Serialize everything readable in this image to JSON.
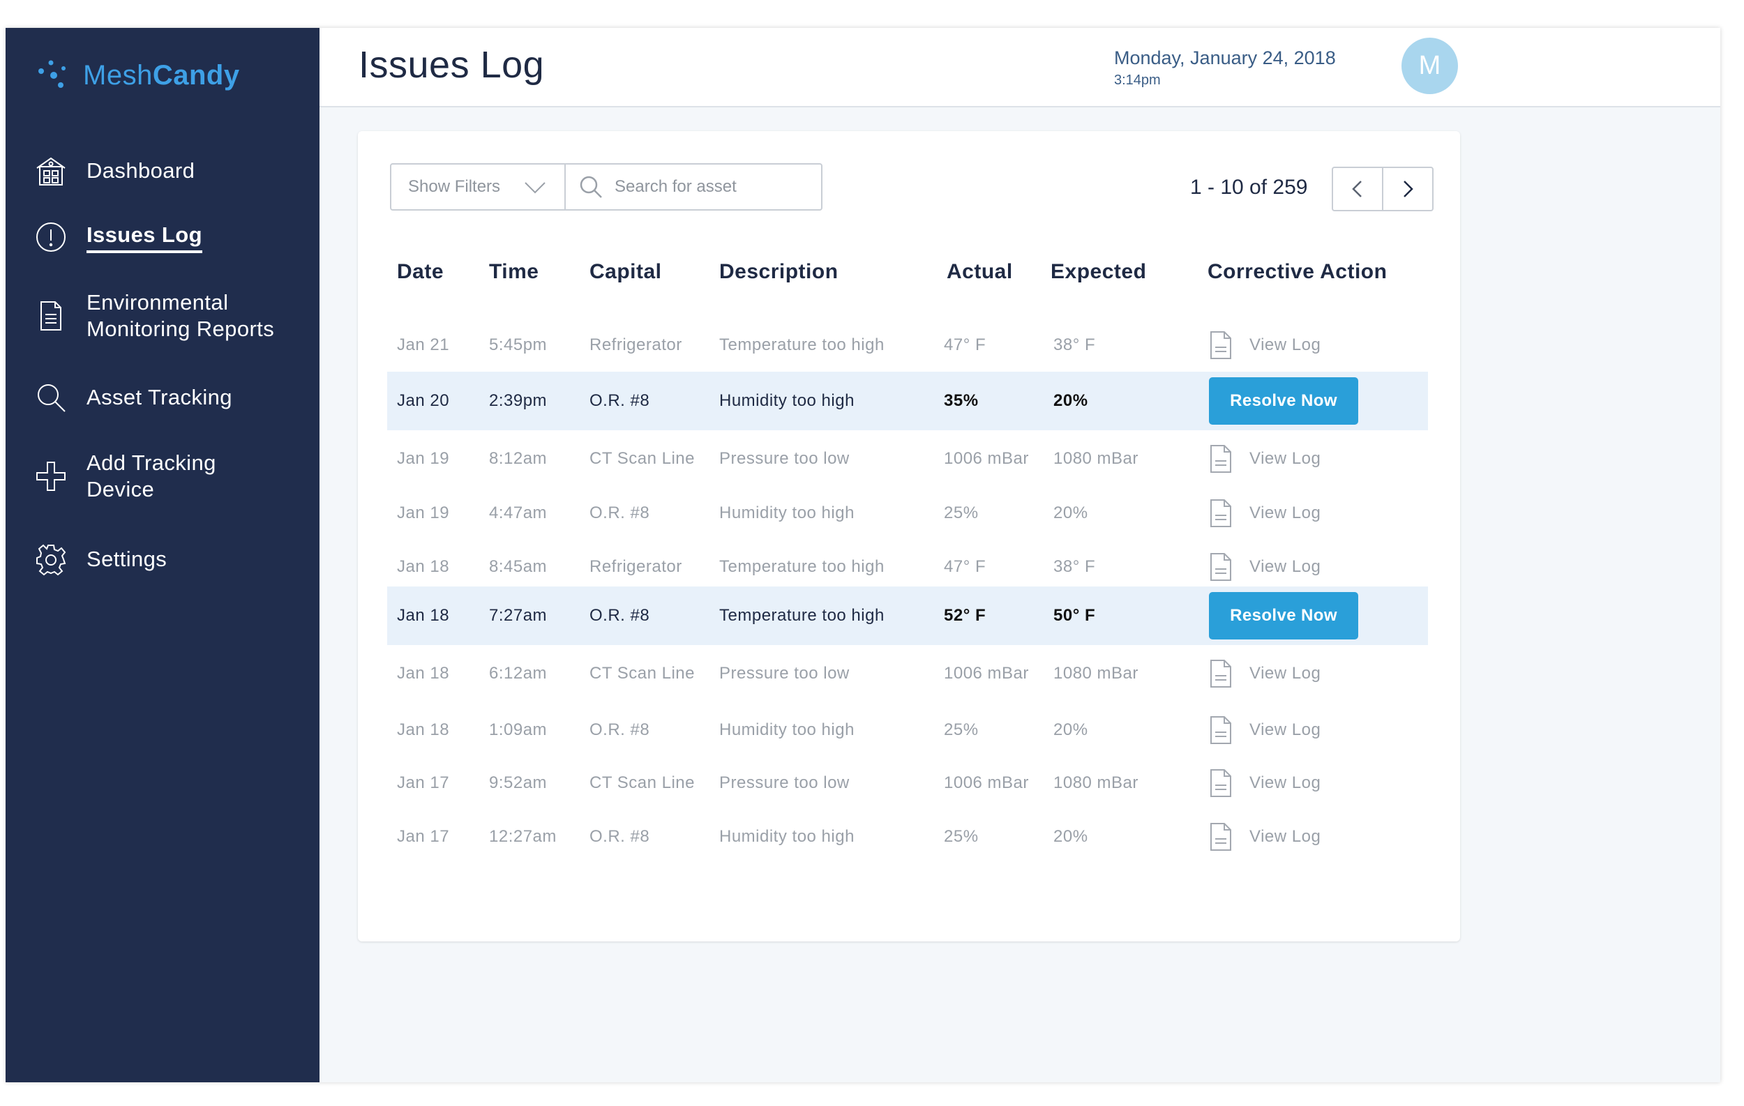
{
  "brand": {
    "name_part1": "Mesh",
    "name_part2": "Candy",
    "accent": "#3ea0e6"
  },
  "sidebar": {
    "background": "#202d4d",
    "items": [
      {
        "label": "Dashboard",
        "icon": "dashboard-building-icon",
        "active": false
      },
      {
        "label": "Issues Log",
        "icon": "alert-circle-icon",
        "active": true
      },
      {
        "label": "Environmental",
        "label2": "Monitoring Reports",
        "icon": "document-icon",
        "active": false
      },
      {
        "label": "Asset Tracking",
        "icon": "search-icon",
        "active": false
      },
      {
        "label": "Add Tracking",
        "label2": "Device",
        "icon": "plus-outline-icon",
        "active": false
      },
      {
        "label": "Settings",
        "icon": "gear-icon",
        "active": false
      }
    ]
  },
  "header": {
    "title": "Issues Log",
    "date": "Monday, January 24, 2018",
    "time": "3:14pm",
    "avatar_initial": "M"
  },
  "toolbar": {
    "filters_label": "Show Filters",
    "search_placeholder": "Search for asset",
    "pagination": "1 - 10 of 259"
  },
  "table": {
    "columns": [
      "Date",
      "Time",
      "Capital",
      "Description",
      "Actual",
      "Expected",
      "Corrective Action"
    ],
    "view_log_label": "View Log",
    "resolve_label": "Resolve Now",
    "rows": [
      {
        "date": "Jan 21",
        "time": "5:45pm",
        "capital": "Refrigerator",
        "description": "Temperature too high",
        "actual": "47° F",
        "expected": "38° F",
        "action": "view"
      },
      {
        "date": "Jan 20",
        "time": "2:39pm",
        "capital": "O.R. #8",
        "description": "Humidity too high",
        "actual": "35%",
        "expected": "20%",
        "action": "resolve"
      },
      {
        "date": "Jan 19",
        "time": "8:12am",
        "capital": "CT Scan Line",
        "description": "Pressure too low",
        "actual": "1006 mBar",
        "expected": "1080 mBar",
        "action": "view"
      },
      {
        "date": "Jan 19",
        "time": "4:47am",
        "capital": "O.R. #8",
        "description": "Humidity too high",
        "actual": "25%",
        "expected": "20%",
        "action": "view"
      },
      {
        "date": "Jan 18",
        "time": "8:45am",
        "capital": "Refrigerator",
        "description": "Temperature too high",
        "actual": "47° F",
        "expected": "38° F",
        "action": "view"
      },
      {
        "date": "Jan 18",
        "time": "7:27am",
        "capital": "O.R. #8",
        "description": "Temperature too high",
        "actual": "52° F",
        "expected": "50° F",
        "action": "resolve"
      },
      {
        "date": "Jan 18",
        "time": "6:12am",
        "capital": "CT Scan Line",
        "description": "Pressure too low",
        "actual": "1006 mBar",
        "expected": "1080 mBar",
        "action": "view"
      },
      {
        "date": "Jan 18",
        "time": "1:09am",
        "capital": "O.R. #8",
        "description": "Humidity too high",
        "actual": "25%",
        "expected": "20%",
        "action": "view"
      },
      {
        "date": "Jan 17",
        "time": "9:52am",
        "capital": "CT Scan Line",
        "description": "Pressure too low",
        "actual": "1006 mBar",
        "expected": "1080 mBar",
        "action": "view"
      },
      {
        "date": "Jan 17",
        "time": "12:27am",
        "capital": "O.R. #8",
        "description": "Humidity too high",
        "actual": "25%",
        "expected": "20%",
        "action": "view"
      }
    ]
  }
}
